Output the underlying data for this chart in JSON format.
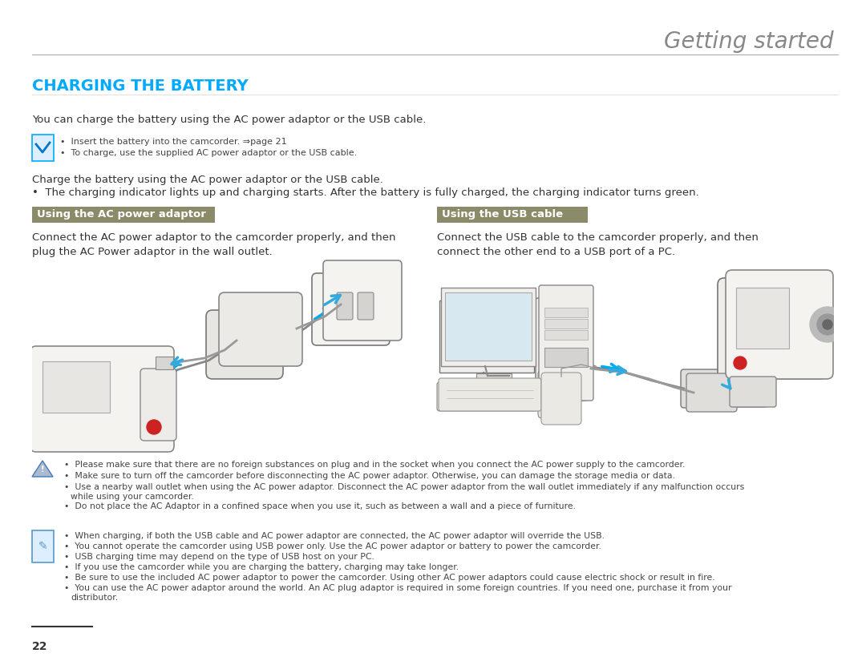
{
  "bg_color": "#ffffff",
  "text_color": "#333333",
  "bullet_text_color": "#444444",
  "title_getting_started": "Getting started",
  "title_getting_started_color": "#888888",
  "title_getting_started_fontsize": 20,
  "section_title": "CHARGING THE BATTERY",
  "section_title_color": "#00aaff",
  "section_title_fontsize": 14,
  "intro_text": "You can charge the battery using the AC power adaptor or the USB cable.",
  "intro_fontsize": 9.5,
  "note_box1_bullets": [
    "Insert the battery into the camcorder. ⇒page 21",
    "To charge, use the supplied AC power adaptor or the USB cable."
  ],
  "note_bullets_fontsize": 8,
  "charge_text1": "Charge the battery using the AC power adaptor or the USB cable.",
  "charge_text2": "•  The charging indicator lights up and charging starts. After the battery is fully charged, the charging indicator turns green.",
  "charge_fontsize": 9.5,
  "subheader1_text": "Using the AC power adaptor",
  "subheader2_text": "Using the USB cable",
  "subheader_bg": "#8b8b6a",
  "subheader_text_color": "#ffffff",
  "subheader_fontsize": 9.5,
  "ac_desc_text": "Connect the AC power adaptor to the camcorder properly, and then\nplug the AC Power adaptor in the wall outlet.",
  "usb_desc_text": "Connect the USB cable to the camcorder properly, and then\nconnect the other end to a USB port of a PC.",
  "desc_fontsize": 9.5,
  "warning_bullets": [
    "Please make sure that there are no foreign substances on plug and in the socket when you connect the AC power supply to the camcorder.",
    "Make sure to turn off the camcorder before disconnecting the AC power adaptor. Otherwise, you can damage the storage media or data.",
    "Use a nearby wall outlet when using the AC power adaptor. Disconnect the AC power adaptor from the wall outlet immediately if any malfunction occurs while using your camcorder.",
    "Do not place the AC Adaptor in a confined space when you use it, such as between a wall and a piece of furniture."
  ],
  "warning_fontsize": 7.8,
  "note_bullets": [
    "When charging, if both the USB cable and AC power adaptor are connected, the AC power adaptor will override the USB.",
    "You cannot operate the camcorder using USB power only. Use the AC power adaptor or battery to power the camcorder.",
    "USB charging time may depend on the type of USB host on your PC.",
    "If you use the camcorder while you are charging the battery, charging may take longer.",
    "Be sure to use the included AC power adaptor to power the camcorder. Using other AC power adaptors could cause electric shock or result in fire.",
    "You can use the AC power adaptor around the world. An AC plug adaptor is required in some foreign countries. If you need one, purchase it from your distributor."
  ],
  "note_fontsize": 7.8,
  "page_number": "22"
}
